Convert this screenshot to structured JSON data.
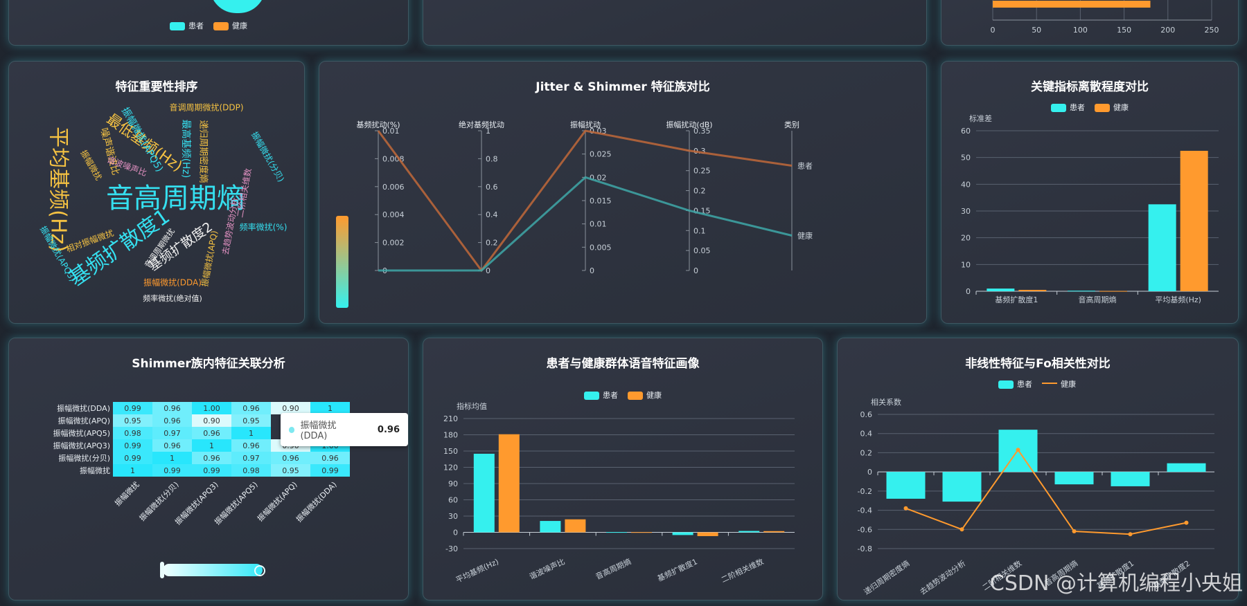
{
  "colors": {
    "patient": "#35f0ee",
    "healthy": "#ff9a2e",
    "accent_brown": "#c0693a"
  },
  "legend": {
    "patient": "患者",
    "healthy": "健康"
  },
  "top_right_axis": {
    "ticks": [
      "0",
      "50",
      "100",
      "150",
      "200",
      "250"
    ],
    "bar_value": 180
  },
  "wordcloud": {
    "title": "特征重要性排序",
    "words": [
      {
        "text": "音高周期熵",
        "color": "#35e0f0"
      },
      {
        "text": "平均基频(Hz)",
        "color": "#f5c242"
      },
      {
        "text": "基频扩散度1",
        "color": "#35e0f0"
      },
      {
        "text": "最低基频(Hz)",
        "color": "#f5c242"
      },
      {
        "text": "基频扩散度2",
        "color": "#f0f0f0"
      },
      {
        "text": "音调周期微扰(DDP)",
        "color": "#f5c242"
      },
      {
        "text": "振幅微扰(APQ5)",
        "color": "#35e0f0"
      },
      {
        "text": "最高基频(Hz)",
        "color": "#35e0f0"
      },
      {
        "text": "递归周期密度熵",
        "color": "#f5c242"
      },
      {
        "text": "噪声谐波比",
        "color": "#f5c242"
      },
      {
        "text": "谐波噪声比",
        "color": "#e090c0"
      },
      {
        "text": "振幅微扰(分贝)",
        "color": "#35e0f0"
      },
      {
        "text": "二阶相关维数",
        "color": "#e090c0"
      },
      {
        "text": "频率微扰(%)",
        "color": "#35e0f0"
      },
      {
        "text": "去趋势波动分析",
        "color": "#e090c0"
      },
      {
        "text": "振幅微扰(APQ)",
        "color": "#f5c242"
      },
      {
        "text": "振幅微扰(DDA)",
        "color": "#ff9a2e"
      },
      {
        "text": "频率微扰(绝对值)",
        "color": "#f0f0f0"
      },
      {
        "text": "振幅微扰(APQ3)",
        "color": "#35e0f0"
      },
      {
        "text": "相对振幅微扰",
        "color": "#f5c242"
      },
      {
        "text": "音调周期微扰",
        "color": "#f0f0f0"
      },
      {
        "text": "振幅微扰",
        "color": "#f5c242"
      }
    ]
  },
  "parallel": {
    "title": "Jitter & Shimmer 特征族对比",
    "axes": [
      {
        "name": "基频扰动(%)",
        "ticks": [
          "0.01",
          "0.008",
          "0.006",
          "0.004",
          "0.002",
          "0"
        ],
        "max": 0.01
      },
      {
        "name": "绝对基频扰动",
        "ticks": [
          "1",
          "0.8",
          "0.6",
          "0.4",
          "0.2",
          "0"
        ],
        "max": 1
      },
      {
        "name": "振幅扰动",
        "ticks": [
          "0.03",
          "0.025",
          "0.02",
          "0.015",
          "0.01",
          "0.005",
          "0"
        ],
        "max": 0.03
      },
      {
        "name": "振幅扰动(dB)",
        "ticks": [
          "0.35",
          "0.3",
          "0.25",
          "0.2",
          "0.15",
          "0.1",
          "0.05",
          "0"
        ],
        "max": 0.35
      },
      {
        "name": "类别",
        "categories": [
          "患者",
          "健康"
        ]
      }
    ]
  },
  "dispersion": {
    "title": "关键指标离散程度对比",
    "ylabel": "标准差",
    "ticks": [
      "0",
      "10",
      "20",
      "30",
      "40",
      "50",
      "60"
    ]
  },
  "heatmap": {
    "title": "Shimmer族内特征关联分析",
    "tooltip": {
      "label": "振幅微扰(DDA)",
      "value": "0.96"
    }
  },
  "profile": {
    "title": "患者与健康群体语音特征画像",
    "ylabel": "指标均值",
    "ticks": [
      "-30",
      "0",
      "30",
      "60",
      "90",
      "120",
      "150",
      "180",
      "210"
    ]
  },
  "nonlinear": {
    "title": "非线性特征与Fo相关性对比",
    "ylabel": "相关系数",
    "ticks": [
      "-0.8",
      "-0.6",
      "-0.4",
      "-0.2",
      "0",
      "0.2",
      "0.4",
      "0.6"
    ]
  },
  "chart_data": [
    {
      "type": "bar",
      "id": "top-right-fragment",
      "series": [
        {
          "name": "健康",
          "values": [
            180
          ]
        }
      ],
      "xlim": [
        0,
        250
      ]
    },
    {
      "type": "parallel",
      "id": "jitter-shimmer",
      "title": "Jitter & Shimmer 特征族对比",
      "dimensions": [
        "基频扰动(%)",
        "绝对基频扰动",
        "振幅扰动",
        "振幅扰动(dB)",
        "类别"
      ],
      "series": [
        {
          "name": "健康",
          "values": [
            0.01,
            0,
            0.03,
            0.3,
            "患者"
          ]
        },
        {
          "name": "患者",
          "values": [
            0,
            0,
            0.02,
            0.15,
            "健康"
          ]
        }
      ]
    },
    {
      "type": "bar",
      "id": "dispersion",
      "title": "关键指标离散程度对比",
      "categories": [
        "基频扩散度1",
        "音高周期熵",
        "平均基频(Hz)"
      ],
      "series": [
        {
          "name": "患者",
          "values": [
            1,
            0.2,
            32.5
          ]
        },
        {
          "name": "健康",
          "values": [
            0.5,
            0.1,
            52.5
          ]
        }
      ],
      "ylabel": "标准差",
      "ylim": [
        0,
        60
      ]
    },
    {
      "type": "heatmap",
      "id": "shimmer-corr",
      "title": "Shimmer族内特征关联分析",
      "x": [
        "振幅微扰",
        "振幅微扰(分贝)",
        "振幅微扰(APQ3)",
        "振幅微扰(APQ5)",
        "振幅微扰(APQ)",
        "振幅微扰(DDA)"
      ],
      "y": [
        "振幅微扰(DDA)",
        "振幅微扰(APQ)",
        "振幅微扰(APQ5)",
        "振幅微扰(APQ3)",
        "振幅微扰(分贝)",
        "振幅微扰"
      ],
      "values": [
        [
          "0.99",
          "0.96",
          "1.00",
          "0.96",
          "0.90",
          "1"
        ],
        [
          "0.95",
          "0.96",
          "0.90",
          "0.95",
          "",
          ""
        ],
        [
          "0.98",
          "0.97",
          "0.96",
          "1",
          "",
          ""
        ],
        [
          "0.99",
          "0.96",
          "1",
          "0.96",
          "0.90",
          "1.00"
        ],
        [
          "0.99",
          "1",
          "0.96",
          "0.97",
          "0.96",
          "0.96"
        ],
        [
          "1",
          "0.99",
          "0.99",
          "0.98",
          "0.95",
          "0.99"
        ]
      ]
    },
    {
      "type": "bar",
      "id": "profile",
      "title": "患者与健康群体语音特征画像",
      "categories": [
        "平均基频(Hz)",
        "谐波噪声比",
        "音高周期熵",
        "基频扩散度1",
        "二阶相关维数"
      ],
      "series": [
        {
          "name": "患者",
          "values": [
            145,
            21,
            0.5,
            -5,
            2.5
          ]
        },
        {
          "name": "健康",
          "values": [
            181,
            24,
            0.4,
            -7,
            2.2
          ]
        }
      ],
      "ylabel": "指标均值",
      "ylim": [
        -30,
        210
      ]
    },
    {
      "type": "bar",
      "id": "nonlinear",
      "title": "非线性特征与Fo相关性对比",
      "categories": [
        "递归周期密度熵",
        "去趋势波动分析",
        "二阶相关维数",
        "音高周期熵",
        "基频扩散度1",
        "基频扩散度2"
      ],
      "series": [
        {
          "name": "患者",
          "type": "bar",
          "values": [
            -0.28,
            -0.31,
            0.44,
            -0.13,
            -0.15,
            0.09
          ]
        },
        {
          "name": "健康",
          "type": "line",
          "values": [
            -0.38,
            -0.6,
            0.23,
            -0.62,
            -0.65,
            -0.53
          ]
        }
      ],
      "ylabel": "相关系数",
      "ylim": [
        -0.8,
        0.6
      ]
    }
  ]
}
